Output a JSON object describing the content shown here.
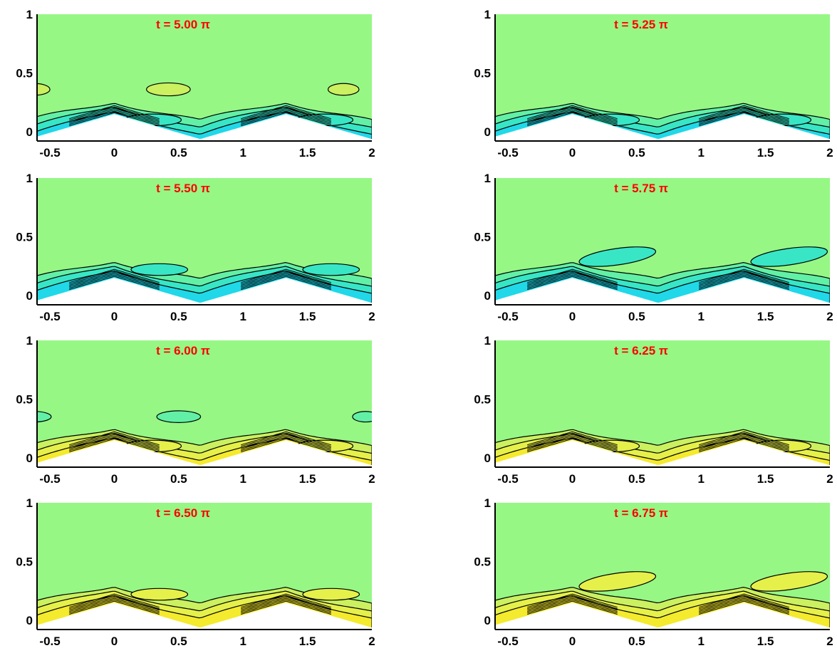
{
  "chart_data": [
    {
      "type": "contour",
      "title": "t = 5.00 π",
      "x_ticks": [
        "-0.5",
        "0",
        "0.5",
        "1",
        "1.5",
        "2"
      ],
      "y_ticks": [
        "0",
        "0.5",
        "1"
      ],
      "xlim": [
        -0.6,
        2.0
      ],
      "ylim": [
        -0.08,
        1.0
      ],
      "style": "cyan-near-wall",
      "upper_cells": [
        [
          -0.62,
          0.36,
          0.12,
          0.05
        ],
        [
          0.42,
          0.36,
          0.17,
          0.055
        ],
        [
          1.78,
          0.36,
          0.12,
          0.05
        ]
      ]
    },
    {
      "type": "contour",
      "title": "t = 5.25 π",
      "x_ticks": [
        "-0.5",
        "0",
        "0.5",
        "1",
        "1.5",
        "2"
      ],
      "y_ticks": [
        "0",
        "0.5",
        "1"
      ],
      "xlim": [
        -0.6,
        2.0
      ],
      "ylim": [
        -0.08,
        1.0
      ],
      "style": "cyan-broad",
      "upper_cells": []
    },
    {
      "type": "contour",
      "title": "t = 5.50 π",
      "x_ticks": [
        "-0.5",
        "0",
        "0.5",
        "1",
        "1.5",
        "2"
      ],
      "y_ticks": [
        "0",
        "0.5",
        "1"
      ],
      "xlim": [
        -0.6,
        2.0
      ],
      "ylim": [
        -0.08,
        1.0
      ],
      "style": "cyan-lifted",
      "upper_cells": []
    },
    {
      "type": "contour",
      "title": "t = 5.75 π",
      "x_ticks": [
        "-0.5",
        "0",
        "0.5",
        "1",
        "1.5",
        "2"
      ],
      "y_ticks": [
        "0",
        "0.5",
        "1"
      ],
      "xlim": [
        -0.6,
        2.0
      ],
      "ylim": [
        -0.08,
        1.0
      ],
      "style": "cyan-detached",
      "upper_cells": []
    },
    {
      "type": "contour",
      "title": "t = 6.00 π",
      "x_ticks": [
        "-0.5",
        "0",
        "0.5",
        "1",
        "1.5",
        "2"
      ],
      "y_ticks": [
        "0",
        "0.5",
        "1"
      ],
      "xlim": [
        -0.6,
        2.0
      ],
      "ylim": [
        -0.08,
        1.0
      ],
      "style": "yellow-near-wall",
      "upper_cells": [
        [
          -0.62,
          0.35,
          0.13,
          0.045
        ],
        [
          0.5,
          0.35,
          0.17,
          0.05
        ],
        [
          1.95,
          0.35,
          0.1,
          0.045
        ]
      ]
    },
    {
      "type": "contour",
      "title": "t = 6.25 π",
      "x_ticks": [
        "-0.5",
        "0",
        "0.5",
        "1",
        "1.5",
        "2"
      ],
      "y_ticks": [
        "0",
        "0.5",
        "1"
      ],
      "xlim": [
        -0.6,
        2.0
      ],
      "ylim": [
        -0.08,
        1.0
      ],
      "style": "yellow-broad",
      "upper_cells": []
    },
    {
      "type": "contour",
      "title": "t = 6.50 π",
      "x_ticks": [
        "-0.5",
        "0",
        "0.5",
        "1",
        "1.5",
        "2"
      ],
      "y_ticks": [
        "0",
        "0.5",
        "1"
      ],
      "xlim": [
        -0.6,
        2.0
      ],
      "ylim": [
        -0.08,
        1.0
      ],
      "style": "yellow-lifted",
      "upper_cells": []
    },
    {
      "type": "contour",
      "title": "t = 6.75 π",
      "x_ticks": [
        "-0.5",
        "0",
        "0.5",
        "1",
        "1.5",
        "2"
      ],
      "y_ticks": [
        "0",
        "0.5",
        "1"
      ],
      "xlim": [
        -0.6,
        2.0
      ],
      "ylim": [
        -0.08,
        1.0
      ],
      "style": "yellow-detached",
      "upper_cells": []
    }
  ],
  "colors": {
    "background": "#96f785",
    "cyan_light": "#62f0a6",
    "cyan_mid": "#38e6c6",
    "cyan_deep": "#20d8e8",
    "yellow_light": "#cbf060",
    "yellow_mid": "#e6f04a",
    "yellow_deep": "#f4ea2e",
    "title_red": "#ff0000",
    "contour_line": "#000000"
  }
}
